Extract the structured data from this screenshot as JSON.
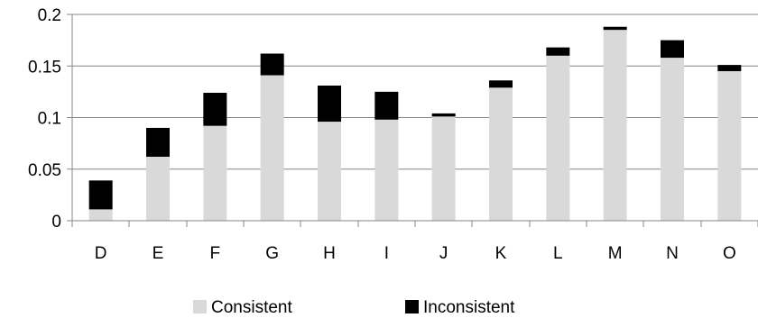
{
  "chart_data": {
    "type": "bar",
    "stacked": true,
    "categories": [
      "D",
      "E",
      "F",
      "G",
      "H",
      "I",
      "J",
      "K",
      "L",
      "M",
      "N",
      "O"
    ],
    "series": [
      {
        "name": "Consistent",
        "color": "#d9d9d9",
        "values": [
          0.011,
          0.062,
          0.092,
          0.141,
          0.096,
          0.098,
          0.101,
          0.129,
          0.16,
          0.185,
          0.158,
          0.145
        ]
      },
      {
        "name": "Inconsistent",
        "color": "#000000",
        "values": [
          0.028,
          0.028,
          0.032,
          0.021,
          0.035,
          0.027,
          0.003,
          0.007,
          0.008,
          0.003,
          0.017,
          0.006
        ]
      }
    ],
    "ylim": [
      0,
      0.2
    ],
    "yticks": [
      "0",
      "0.05",
      "0.1",
      "0.15",
      "0.2"
    ],
    "grid": true,
    "legend": "bottom",
    "title": "",
    "xlabel": "",
    "ylabel": ""
  }
}
